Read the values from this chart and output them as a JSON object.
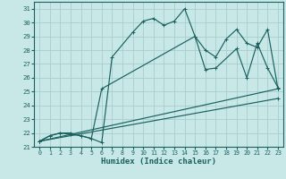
{
  "xlabel": "Humidex (Indice chaleur)",
  "bg_color": "#c8e8e8",
  "grid_color": "#a8cccc",
  "line_color": "#1a6060",
  "xlim": [
    -0.5,
    23.5
  ],
  "ylim": [
    21,
    31.5
  ],
  "yticks": [
    21,
    22,
    23,
    24,
    25,
    26,
    27,
    28,
    29,
    30,
    31
  ],
  "xticks": [
    0,
    1,
    2,
    3,
    4,
    5,
    6,
    7,
    8,
    9,
    10,
    11,
    12,
    13,
    14,
    15,
    16,
    17,
    18,
    19,
    20,
    21,
    22,
    23
  ],
  "lines": [
    {
      "x": [
        0,
        1,
        2,
        3,
        4,
        5,
        6,
        7,
        9,
        10,
        11,
        12,
        13,
        14,
        15,
        16,
        17,
        19,
        20,
        21,
        22,
        23
      ],
      "y": [
        21.4,
        21.8,
        22.0,
        22.0,
        21.8,
        21.6,
        21.3,
        27.5,
        29.3,
        30.1,
        30.3,
        29.8,
        30.1,
        31.0,
        29.0,
        26.6,
        26.7,
        28.1,
        26.0,
        28.5,
        26.7,
        25.3
      ]
    },
    {
      "x": [
        0,
        1,
        2,
        3,
        4,
        5,
        6,
        15,
        16,
        17,
        18,
        19,
        20,
        21,
        22,
        23
      ],
      "y": [
        21.4,
        21.8,
        22.0,
        21.9,
        21.8,
        21.6,
        25.2,
        29.0,
        28.0,
        27.5,
        28.8,
        29.5,
        28.5,
        28.2,
        29.5,
        25.2
      ]
    },
    {
      "x": [
        0,
        23
      ],
      "y": [
        21.4,
        25.2
      ]
    },
    {
      "x": [
        0,
        23
      ],
      "y": [
        21.4,
        24.5
      ]
    }
  ]
}
